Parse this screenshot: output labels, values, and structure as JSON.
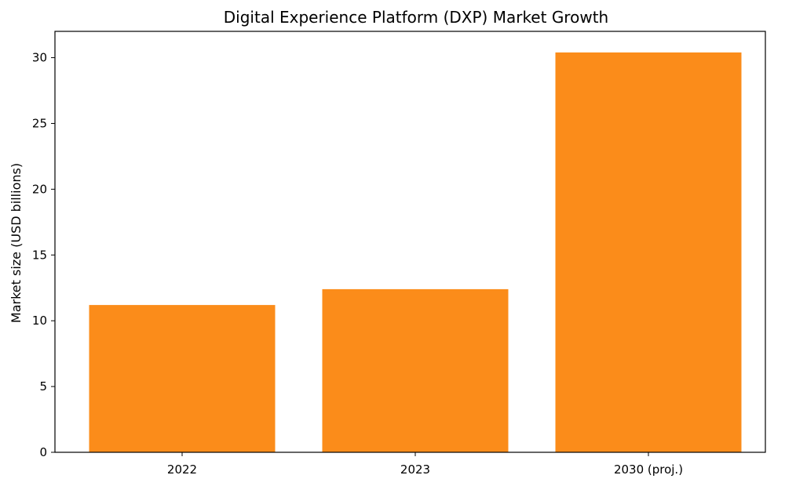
{
  "chart_data": {
    "type": "bar",
    "title": "Digital Experience Platform (DXP) Market Growth",
    "xlabel": "",
    "ylabel": "Market size (USD billions)",
    "categories": [
      "2022",
      "2023",
      "2030 (proj.)"
    ],
    "values": [
      11.2,
      12.4,
      30.4
    ],
    "ylim": [
      0,
      32
    ],
    "yticks": [
      "0",
      "5",
      "10",
      "15",
      "20",
      "25",
      "30"
    ],
    "bar_color": "#fb8c1a",
    "grid": false,
    "legend": "none"
  }
}
